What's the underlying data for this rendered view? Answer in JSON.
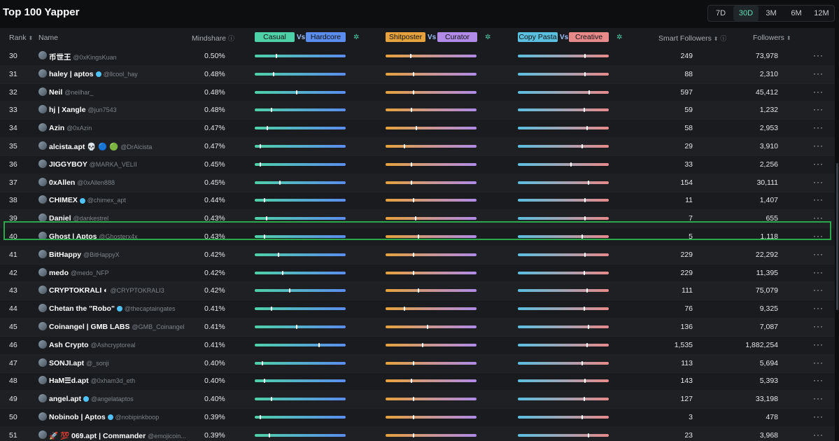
{
  "title": "Top 100 Yapper",
  "ranges": [
    "7D",
    "30D",
    "3M",
    "6M",
    "12M"
  ],
  "active_range": "30D",
  "headers": {
    "rank": "Rank",
    "name": "Name",
    "mindshare": "Mindshare",
    "casual": "Casual",
    "hardcore": "Hardcore",
    "shitposter": "Shitposter",
    "curator": "Curator",
    "copypasta": "Copy Pasta",
    "creative": "Creative",
    "vs": "Vs",
    "smart_followers": "Smart Followers",
    "followers": "Followers",
    "sort_symbol": "⬍",
    "info_symbol": "ⓘ",
    "gear_symbol": "✲"
  },
  "colors": {
    "casual": "#4fd1a8",
    "hardcore": "#5b8def",
    "shitposter": "#e6a23c",
    "curator": "#b08be8",
    "copypasta": "#5bbfe0",
    "creative": "#e88a8a",
    "highlight": "#2ba84a"
  },
  "rows": [
    {
      "rank": "30",
      "name": "币世王",
      "handle": "@0xKingsKuan",
      "mindshare": "0.50%",
      "smart": "249",
      "followers": "73,978",
      "b1": 0.23,
      "b2": 0.27,
      "b3": 0.73
    },
    {
      "rank": "31",
      "name": "haley | aptos",
      "handle": "@llcool_hay",
      "mindshare": "0.48%",
      "smart": "88",
      "followers": "2,310",
      "b1": 0.2,
      "b2": 0.3,
      "b3": 0.73,
      "verified": true
    },
    {
      "rank": "32",
      "name": "Neil",
      "handle": "@neilhar_",
      "mindshare": "0.48%",
      "smart": "597",
      "followers": "45,412",
      "b1": 0.45,
      "b2": 0.3,
      "b3": 0.78
    },
    {
      "rank": "33",
      "name": "hj | Xangle",
      "handle": "@jun7543",
      "mindshare": "0.48%",
      "smart": "59",
      "followers": "1,232",
      "b1": 0.18,
      "b2": 0.28,
      "b3": 0.72
    },
    {
      "rank": "34",
      "name": "Azin",
      "handle": "@0xAzin",
      "mindshare": "0.47%",
      "smart": "58",
      "followers": "2,953",
      "b1": 0.13,
      "b2": 0.33,
      "b3": 0.75
    },
    {
      "rank": "35",
      "name": "alcista.apt 💀 🔵 🟢",
      "handle": "@DrAlcista",
      "mindshare": "0.47%",
      "smart": "29",
      "followers": "3,910",
      "b1": 0.05,
      "b2": 0.2,
      "b3": 0.7
    },
    {
      "rank": "36",
      "name": "JIGGYBOY",
      "handle": "@MARKA_VELII",
      "mindshare": "0.45%",
      "smart": "33",
      "followers": "2,256",
      "b1": 0.05,
      "b2": 0.28,
      "b3": 0.58
    },
    {
      "rank": "37",
      "name": "0xAllen",
      "handle": "@0xAllen888",
      "mindshare": "0.45%",
      "smart": "154",
      "followers": "30,111",
      "b1": 0.27,
      "b2": 0.28,
      "b3": 0.77
    },
    {
      "rank": "38",
      "name": "CHIMEX",
      "handle": "@chimex_apt",
      "mindshare": "0.44%",
      "smart": "11",
      "followers": "1,407",
      "b1": 0.1,
      "b2": 0.3,
      "b3": 0.73,
      "verified": true
    },
    {
      "rank": "39",
      "name": "Daniel",
      "handle": "@dankestrel",
      "mindshare": "0.43%",
      "smart": "7",
      "followers": "655",
      "b1": 0.12,
      "b2": 0.32,
      "b3": 0.73
    },
    {
      "rank": "40",
      "name": "Ghost | Aptos",
      "handle": "@Ghosterx4x",
      "mindshare": "0.43%",
      "smart": "5",
      "followers": "1,118",
      "b1": 0.1,
      "b2": 0.35,
      "b3": 0.7
    },
    {
      "rank": "41",
      "name": "BitHappy",
      "handle": "@BitHappyX",
      "mindshare": "0.42%",
      "smart": "229",
      "followers": "22,292",
      "b1": 0.25,
      "b2": 0.3,
      "b3": 0.73
    },
    {
      "rank": "42",
      "name": "medo",
      "handle": "@medo_NFP",
      "mindshare": "0.42%",
      "smart": "229",
      "followers": "11,395",
      "b1": 0.3,
      "b2": 0.3,
      "b3": 0.72
    },
    {
      "rank": "43",
      "name": "CRYPTOKRALI ◐",
      "handle": "@CRYPTOKRALI3",
      "mindshare": "0.42%",
      "smart": "111",
      "followers": "75,079",
      "b1": 0.38,
      "b2": 0.35,
      "b3": 0.75
    },
    {
      "rank": "44",
      "name": "Chetan the \"Robo\"",
      "handle": "@thecaptaingates",
      "mindshare": "0.41%",
      "smart": "76",
      "followers": "9,325",
      "b1": 0.18,
      "b2": 0.2,
      "b3": 0.72,
      "verified": true
    },
    {
      "rank": "45",
      "name": "Coinangel | GMB LABS",
      "handle": "@GMB_Coinangel",
      "mindshare": "0.41%",
      "smart": "136",
      "followers": "7,087",
      "b1": 0.45,
      "b2": 0.45,
      "b3": 0.77
    },
    {
      "rank": "46",
      "name": "Ash Crypto",
      "handle": "@Ashcryptoreal",
      "mindshare": "0.41%",
      "smart": "1,535",
      "followers": "1,882,254",
      "b1": 0.7,
      "b2": 0.4,
      "b3": 0.75
    },
    {
      "rank": "47",
      "name": "SONJI.apt",
      "handle": "@_sonji",
      "mindshare": "0.40%",
      "smart": "113",
      "followers": "5,694",
      "b1": 0.08,
      "b2": 0.3,
      "b3": 0.7
    },
    {
      "rank": "48",
      "name": "HaM☰d.apt",
      "handle": "@0xham3d_eth",
      "mindshare": "0.40%",
      "smart": "143",
      "followers": "5,393",
      "b1": 0.1,
      "b2": 0.28,
      "b3": 0.73
    },
    {
      "rank": "49",
      "name": "angel.apt",
      "handle": "@angelataptos",
      "mindshare": "0.40%",
      "smart": "127",
      "followers": "33,198",
      "b1": 0.18,
      "b2": 0.3,
      "b3": 0.72,
      "verified": true
    },
    {
      "rank": "50",
      "name": "Nobinob | Aptos",
      "handle": "@nobipinkboop",
      "mindshare": "0.39%",
      "smart": "3",
      "followers": "478",
      "b1": 0.05,
      "b2": 0.3,
      "b3": 0.7,
      "verified": true
    },
    {
      "rank": "51",
      "name": "🚀 💯 069.apt | Commander",
      "handle": "@emojicoin...",
      "mindshare": "0.39%",
      "smart": "23",
      "followers": "3,968",
      "b1": 0.15,
      "b2": 0.3,
      "b3": 0.77
    }
  ],
  "highlight_rank": "40"
}
